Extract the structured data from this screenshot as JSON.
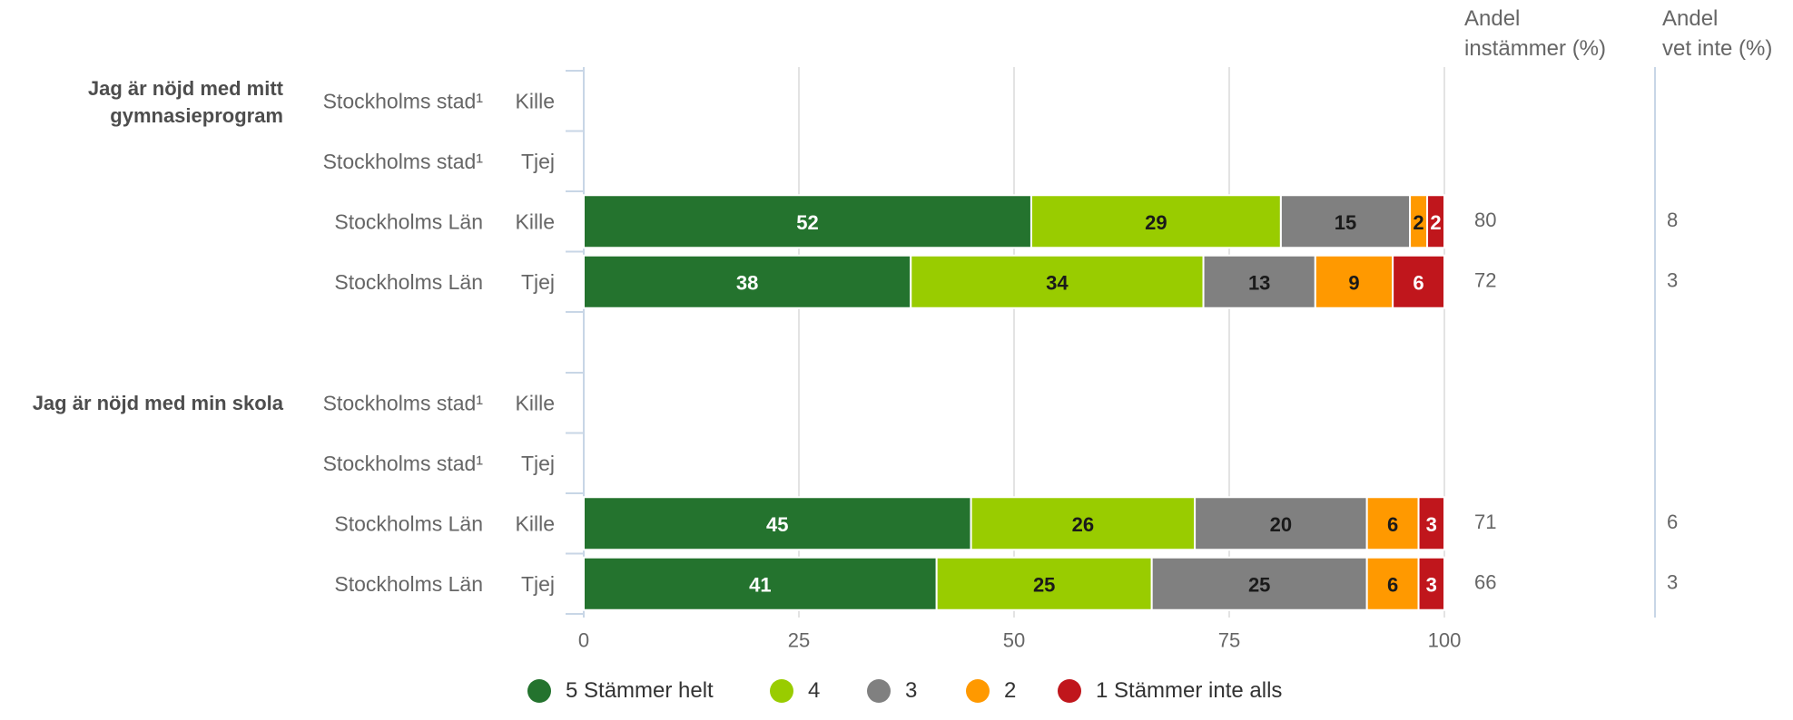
{
  "chart_data": {
    "type": "bar",
    "orientation": "horizontal",
    "stacked": true,
    "header": {
      "col1_line1": "Andel",
      "col1_line2": "instämmer (%)",
      "col2_line1": "Andel",
      "col2_line2": "vet inte (%)"
    },
    "groups": [
      {
        "label_line1": "Jag är nöjd med mitt",
        "label_line2": "gymnasieprogram",
        "rows": [
          {
            "region": "Stockholms stad¹",
            "gender": "Kille",
            "values": [],
            "agree": "",
            "dontknow": ""
          },
          {
            "region": "Stockholms stad¹",
            "gender": "Tjej",
            "values": [],
            "agree": "",
            "dontknow": ""
          },
          {
            "region": "Stockholms Län",
            "gender": "Kille",
            "values": [
              52,
              29,
              15,
              2,
              2
            ],
            "agree": "80",
            "dontknow": "8"
          },
          {
            "region": "Stockholms Län",
            "gender": "Tjej",
            "values": [
              38,
              34,
              13,
              9,
              6
            ],
            "agree": "72",
            "dontknow": "3"
          }
        ]
      },
      {
        "label_line1": "Jag är nöjd med min skola",
        "label_line2": "",
        "rows": [
          {
            "region": "Stockholms stad¹",
            "gender": "Kille",
            "values": [],
            "agree": "",
            "dontknow": ""
          },
          {
            "region": "Stockholms stad¹",
            "gender": "Tjej",
            "values": [],
            "agree": "",
            "dontknow": ""
          },
          {
            "region": "Stockholms Län",
            "gender": "Kille",
            "values": [
              45,
              26,
              20,
              6,
              3
            ],
            "agree": "71",
            "dontknow": "6"
          },
          {
            "region": "Stockholms Län",
            "gender": "Tjej",
            "values": [
              41,
              25,
              25,
              6,
              3
            ],
            "agree": "66",
            "dontknow": "3"
          }
        ]
      }
    ],
    "series": [
      {
        "name": "5 Stämmer helt",
        "color": "#24732e",
        "label_color": "#ffffff"
      },
      {
        "name": "4",
        "color": "#99cc00",
        "label_color": "#1a1a1a"
      },
      {
        "name": "3",
        "color": "#808080",
        "label_color": "#1a1a1a"
      },
      {
        "name": "2",
        "color": "#ff9900",
        "label_color": "#1a1a1a"
      },
      {
        "name": "1 Stämmer inte alls",
        "color": "#c0161c",
        "label_color": "#ffffff"
      }
    ],
    "x_ticks": [
      "0",
      "25",
      "50",
      "75",
      "100"
    ],
    "xlim": [
      0,
      100
    ],
    "grid": true,
    "legend_position": "bottom"
  }
}
